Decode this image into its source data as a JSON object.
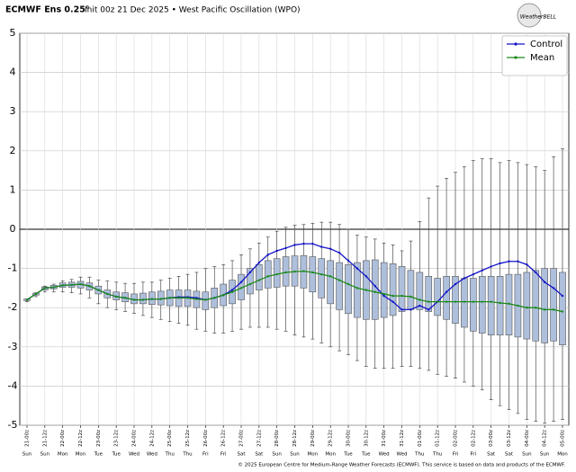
{
  "chart_data": {
    "type": "box",
    "title": "ECMWF Ens 0.25°",
    "subtitle": "Init 00z 21 Dec 2025 • West Pacific Oscillation (WPO)",
    "logo": "WeatherBELL",
    "footer": "© 2025 European Centre for Medium-Range Weather Forecasts (ECMWF). This service is based on data and products of the ECMWF.",
    "categories": [
      "21-00z",
      null,
      "21-12z",
      null,
      "22-00z",
      null,
      "22-12z",
      null,
      "23-00z",
      null,
      "23-12z",
      null,
      "24-00z",
      null,
      "24-12z",
      null,
      "25-00z",
      null,
      "25-12z",
      null,
      "26-00z",
      null,
      "26-12z",
      null,
      "27-00z",
      null,
      "27-12z",
      null,
      "28-00z",
      null,
      "28-12z",
      null,
      "29-00z",
      null,
      "29-12z",
      null,
      "30-00z",
      null,
      "30-12z",
      null,
      "31-00z",
      null,
      "31-12z",
      null,
      "01-00z",
      null,
      "01-12z",
      null,
      "02-00z",
      null,
      "02-12z",
      null,
      "03-00z",
      null,
      "03-12z",
      null,
      "04-00z",
      null,
      "04-12z",
      null,
      "05-00z"
    ],
    "weekdays": [
      "Sun",
      null,
      "Sun",
      null,
      "Mon",
      null,
      "Mon",
      null,
      "Tue",
      null,
      "Tue",
      null,
      "Wed",
      null,
      "Wed",
      null,
      "Thu",
      null,
      "Thu",
      null,
      "Fri",
      null,
      "Fri",
      null,
      "Sat",
      null,
      "Sat",
      null,
      "Sun",
      null,
      "Sun",
      null,
      "Mon",
      null,
      "Mon",
      null,
      "Tue",
      null,
      "Tue",
      null,
      "Wed",
      null,
      "Wed",
      null,
      "Thu",
      null,
      "Thu",
      null,
      "Fri",
      null,
      "Fri",
      null,
      "Sat",
      null,
      "Sat",
      null,
      "Sun",
      null,
      "Sun",
      null,
      "Mon"
    ],
    "ylim": [
      -5,
      5
    ],
    "yticks": [
      -5,
      -4,
      -3,
      -2,
      -1,
      0,
      1,
      2,
      3,
      4,
      5
    ],
    "grid": true,
    "legend": "upper right",
    "ensemble": {
      "color": "#aebfdc",
      "high": [
        -1.78,
        -1.62,
        -1.45,
        -1.4,
        -1.32,
        -1.28,
        -1.22,
        -1.22,
        -1.3,
        -1.32,
        -1.35,
        -1.38,
        -1.38,
        -1.35,
        -1.35,
        -1.3,
        -1.25,
        -1.2,
        -1.15,
        -1.1,
        -1.0,
        -0.95,
        -0.9,
        -0.8,
        -0.65,
        -0.5,
        -0.35,
        -0.2,
        -0.05,
        0.05,
        0.1,
        0.12,
        0.15,
        0.18,
        0.18,
        0.12,
        0.0,
        -0.15,
        -0.2,
        -0.25,
        -0.35,
        -0.4,
        -0.55,
        -0.3,
        0.2,
        0.8,
        1.1,
        1.3,
        1.45,
        1.6,
        1.75,
        1.8,
        1.8,
        1.7,
        1.75,
        1.7,
        1.65,
        1.6,
        1.5,
        1.85,
        2.05
      ],
      "q3": [
        -1.78,
        -1.63,
        -1.47,
        -1.43,
        -1.37,
        -1.35,
        -1.33,
        -1.37,
        -1.45,
        -1.55,
        -1.6,
        -1.62,
        -1.65,
        -1.63,
        -1.6,
        -1.58,
        -1.55,
        -1.55,
        -1.55,
        -1.58,
        -1.6,
        -1.5,
        -1.4,
        -1.3,
        -1.15,
        -1.0,
        -0.9,
        -0.8,
        -0.75,
        -0.7,
        -0.68,
        -0.67,
        -0.7,
        -0.75,
        -0.8,
        -0.85,
        -0.9,
        -0.85,
        -0.8,
        -0.78,
        -0.85,
        -0.88,
        -0.95,
        -1.05,
        -1.1,
        -1.2,
        -1.25,
        -1.2,
        -1.2,
        -1.25,
        -1.25,
        -1.2,
        -1.2,
        -1.2,
        -1.15,
        -1.15,
        -1.1,
        -1.05,
        -1.0,
        -1.0,
        -1.1
      ],
      "q1": [
        -1.82,
        -1.68,
        -1.55,
        -1.52,
        -1.48,
        -1.48,
        -1.5,
        -1.55,
        -1.65,
        -1.75,
        -1.8,
        -1.85,
        -1.9,
        -1.9,
        -1.92,
        -1.93,
        -1.95,
        -1.97,
        -1.97,
        -2.0,
        -2.05,
        -2.0,
        -1.95,
        -1.9,
        -1.8,
        -1.65,
        -1.55,
        -1.5,
        -1.48,
        -1.45,
        -1.45,
        -1.5,
        -1.6,
        -1.75,
        -1.9,
        -2.05,
        -2.15,
        -2.25,
        -2.3,
        -2.3,
        -2.25,
        -2.2,
        -2.1,
        -2.05,
        -2.05,
        -2.1,
        -2.2,
        -2.3,
        -2.4,
        -2.5,
        -2.6,
        -2.65,
        -2.7,
        -2.7,
        -2.7,
        -2.75,
        -2.8,
        -2.85,
        -2.9,
        -2.85,
        -2.95
      ],
      "low": [
        -1.85,
        -1.72,
        -1.6,
        -1.6,
        -1.6,
        -1.62,
        -1.65,
        -1.75,
        -1.9,
        -2.0,
        -2.05,
        -2.1,
        -2.15,
        -2.2,
        -2.25,
        -2.3,
        -2.35,
        -2.4,
        -2.45,
        -2.55,
        -2.6,
        -2.65,
        -2.65,
        -2.6,
        -2.55,
        -2.5,
        -2.5,
        -2.5,
        -2.55,
        -2.6,
        -2.7,
        -2.75,
        -2.8,
        -2.9,
        -3.0,
        -3.1,
        -3.2,
        -3.35,
        -3.5,
        -3.55,
        -3.55,
        -3.55,
        -3.5,
        -3.5,
        -3.55,
        -3.6,
        -3.7,
        -3.75,
        -3.8,
        -3.9,
        -4.0,
        -4.1,
        -4.35,
        -4.5,
        -4.6,
        -4.7,
        -4.85,
        -4.9,
        -4.95,
        -4.9,
        -4.85
      ]
    },
    "series": [
      {
        "name": "Control",
        "color": "#1414c8",
        "values": [
          -1.8,
          -1.65,
          -1.5,
          -1.48,
          -1.43,
          -1.42,
          -1.4,
          -1.45,
          -1.55,
          -1.65,
          -1.72,
          -1.75,
          -1.8,
          -1.8,
          -1.78,
          -1.78,
          -1.75,
          -1.73,
          -1.73,
          -1.75,
          -1.8,
          -1.75,
          -1.68,
          -1.55,
          -1.35,
          -1.1,
          -0.85,
          -0.65,
          -0.55,
          -0.48,
          -0.4,
          -0.37,
          -0.37,
          -0.45,
          -0.5,
          -0.6,
          -0.8,
          -1.0,
          -1.2,
          -1.45,
          -1.7,
          -1.85,
          -2.05,
          -2.05,
          -1.95,
          -2.05,
          -1.85,
          -1.6,
          -1.4,
          -1.25,
          -1.15,
          -1.05,
          -0.95,
          -0.87,
          -0.82,
          -0.82,
          -0.9,
          -1.1,
          -1.35,
          -1.5,
          -1.7
        ]
      },
      {
        "name": "Mean",
        "color": "#1a8a1a",
        "values": [
          -1.8,
          -1.65,
          -1.5,
          -1.48,
          -1.43,
          -1.42,
          -1.4,
          -1.45,
          -1.55,
          -1.65,
          -1.72,
          -1.75,
          -1.8,
          -1.8,
          -1.78,
          -1.78,
          -1.75,
          -1.75,
          -1.75,
          -1.78,
          -1.8,
          -1.75,
          -1.68,
          -1.6,
          -1.5,
          -1.4,
          -1.3,
          -1.2,
          -1.15,
          -1.1,
          -1.08,
          -1.07,
          -1.1,
          -1.15,
          -1.2,
          -1.3,
          -1.4,
          -1.5,
          -1.55,
          -1.6,
          -1.65,
          -1.7,
          -1.7,
          -1.72,
          -1.8,
          -1.85,
          -1.85,
          -1.85,
          -1.85,
          -1.85,
          -1.85,
          -1.85,
          -1.85,
          -1.88,
          -1.9,
          -1.95,
          -2.0,
          -2.0,
          -2.05,
          -2.05,
          -2.1
        ]
      }
    ]
  }
}
